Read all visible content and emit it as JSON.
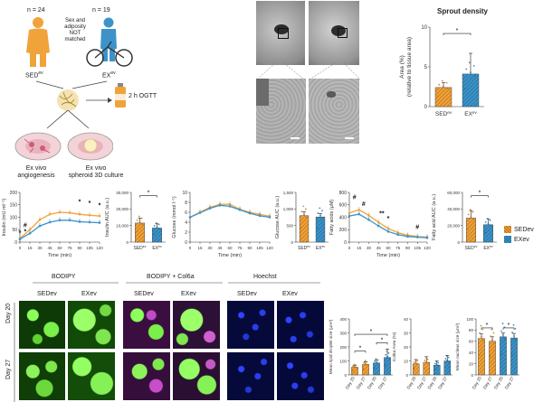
{
  "colors": {
    "sed": "#f0a33a",
    "ex": "#3d93c9",
    "sed_dark": "#b86f16",
    "ex_dark": "#1f6d98"
  },
  "schematic": {
    "n_sed": "n = 24",
    "n_ex": "n = 19",
    "match_note": [
      "Sex and",
      "adiposity",
      "NOT",
      "matched"
    ],
    "sed_label": "SED",
    "sed_sup": "ev",
    "ex_label": "EX",
    "ex_sup": "ev",
    "ogtt": "2 h OGTT",
    "dish1": [
      "Ex vivo",
      "angiogenesis"
    ],
    "dish2": [
      "Ex vivo",
      "spheroid 3D culture"
    ]
  },
  "sprout": {
    "title": "Sprout density",
    "ylabel1": "Area (%)",
    "ylabel2": "(relative to tissue area)",
    "sig": "*",
    "y_ticks": [
      "0",
      "5",
      "10"
    ],
    "x_labels": [
      "SEDev",
      "EXev"
    ]
  },
  "legend": {
    "sed": "SEDev",
    "ex": "EXev"
  },
  "chart_data": [
    {
      "type": "bar",
      "title": "Sprout density",
      "ylabel": "Area (%) (relative to tissue area)",
      "categories": [
        "SEDev",
        "EXev"
      ],
      "values": [
        2.4,
        4.1
      ],
      "errors": [
        0.6,
        2.6
      ],
      "ylim": [
        0,
        10
      ],
      "significance": "*"
    },
    {
      "type": "line",
      "title": "",
      "xlabel": "Time (min)",
      "ylabel": "Insulin (mU ml⁻¹)",
      "x": [
        0,
        15,
        30,
        45,
        60,
        75,
        90,
        105,
        120
      ],
      "x_ticks": [
        "0",
        "15",
        "30",
        "45",
        "60",
        "75",
        "90",
        "105",
        "120"
      ],
      "ylim": [
        0,
        200
      ],
      "y_ticks": [
        "0",
        "50",
        "100",
        "150",
        "200"
      ],
      "series": [
        {
          "name": "SEDev",
          "values": [
            15,
            50,
            90,
            112,
            120,
            118,
            112,
            108,
            105
          ]
        },
        {
          "name": "EXev",
          "values": [
            12,
            35,
            65,
            80,
            88,
            88,
            82,
            80,
            78
          ]
        }
      ],
      "annotations": [
        "*",
        "*",
        "#",
        "*",
        "*",
        "*"
      ]
    },
    {
      "type": "bar",
      "ylabel": "Insulin AUC (a.u.)",
      "categories": [
        "SEDev",
        "EXev"
      ],
      "values": [
        11500,
        8500
      ],
      "errors": [
        3000,
        2500
      ],
      "ylim": [
        0,
        30000
      ],
      "y_ticks": [
        "0",
        "10,000",
        "20,000",
        "30,000"
      ],
      "significance": "*"
    },
    {
      "type": "line",
      "xlabel": "Time (min)",
      "ylabel": "Glucose (mmol l⁻¹)",
      "x": [
        0,
        15,
        30,
        45,
        60,
        75,
        90,
        105,
        120
      ],
      "x_ticks": [
        "0",
        "15",
        "30",
        "45",
        "60",
        "75",
        "90",
        "105",
        "120"
      ],
      "ylim": [
        0,
        10
      ],
      "y_ticks": [
        "0",
        "2",
        "4",
        "6",
        "8",
        "10"
      ],
      "series": [
        {
          "name": "SEDev",
          "values": [
            5.0,
            6.0,
            7.0,
            7.6,
            7.6,
            6.6,
            6.0,
            5.6,
            5.2
          ]
        },
        {
          "name": "EXev",
          "values": [
            5.0,
            5.9,
            6.8,
            7.4,
            7.2,
            6.5,
            5.8,
            5.3,
            5.0
          ]
        }
      ]
    },
    {
      "type": "bar",
      "ylabel": "Glucose AUC (a.u.)",
      "categories": [
        "SEDev",
        "EXev"
      ],
      "values": [
        800,
        760
      ],
      "errors": [
        120,
        100
      ],
      "ylim": [
        0,
        1500
      ],
      "y_ticks": [
        "0",
        "500",
        "1,000",
        "1,500"
      ]
    },
    {
      "type": "line",
      "xlabel": "Time (min)",
      "ylabel": "Fatty acids (μM)",
      "x": [
        0,
        15,
        30,
        45,
        60,
        75,
        90,
        105,
        120
      ],
      "x_ticks": [
        "0",
        "15",
        "30",
        "45",
        "60",
        "75",
        "90",
        "105",
        "120"
      ],
      "ylim": [
        0,
        800
      ],
      "y_ticks": [
        "0",
        "200",
        "400",
        "600",
        "800"
      ],
      "series": [
        {
          "name": "SEDev",
          "values": [
            470,
            520,
            430,
            320,
            220,
            150,
            110,
            90,
            80
          ]
        },
        {
          "name": "EXev",
          "values": [
            420,
            450,
            360,
            260,
            170,
            120,
            90,
            80,
            70
          ]
        }
      ],
      "annotations": [
        "#",
        "#",
        "**",
        "*",
        "#"
      ]
    },
    {
      "type": "bar",
      "ylabel": "Fatty acid AUC (a.u.)",
      "categories": [
        "SEDev",
        "EXev"
      ],
      "values": [
        29000,
        21000
      ],
      "errors": [
        9000,
        7000
      ],
      "ylim": [
        0,
        60000
      ],
      "y_ticks": [
        "0",
        "20,000",
        "40,000",
        "60,000"
      ],
      "significance": "*"
    },
    {
      "type": "bar",
      "ylabel": "Mean lipid droplet size (μm²)",
      "categories": [
        "Day 20",
        "Day 27",
        "Day 20",
        "Day 27"
      ],
      "values": [
        55,
        75,
        85,
        125
      ],
      "errors": [
        15,
        20,
        20,
        60
      ],
      "ylim": [
        0,
        400
      ],
      "y_ticks": [
        "0",
        "100",
        "200",
        "300",
        "400"
      ],
      "significance": [
        "*",
        "*",
        "*"
      ]
    },
    {
      "type": "bar",
      "ylabel": "Col6a Area (%)",
      "categories": [
        "Day 20",
        "Day 27",
        "Day 20",
        "Day 27"
      ],
      "values": [
        8,
        9,
        7,
        10
      ],
      "errors": [
        3,
        4,
        3,
        4
      ],
      "ylim": [
        0,
        40
      ],
      "y_ticks": [
        "0",
        "10",
        "20",
        "30",
        "40"
      ]
    },
    {
      "type": "bar",
      "ylabel": "Mean nucleus size (μm²)",
      "categories": [
        "Day 20",
        "Day 27",
        "Day 20",
        "Day 27"
      ],
      "values": [
        65,
        60,
        68,
        66
      ],
      "errors": [
        8,
        8,
        7,
        8
      ],
      "ylim": [
        0,
        100
      ],
      "y_ticks": [
        "0",
        "20",
        "40",
        "60",
        "80",
        "100"
      ],
      "significance": [
        "*",
        "*"
      ]
    }
  ],
  "micro": {
    "col_groups": [
      "BODIPY",
      "BODIPY + Col6a",
      "Hoechst"
    ],
    "col_sub": [
      "SEDev",
      "EXev"
    ],
    "rows": [
      "Day 20",
      "Day 27"
    ]
  }
}
